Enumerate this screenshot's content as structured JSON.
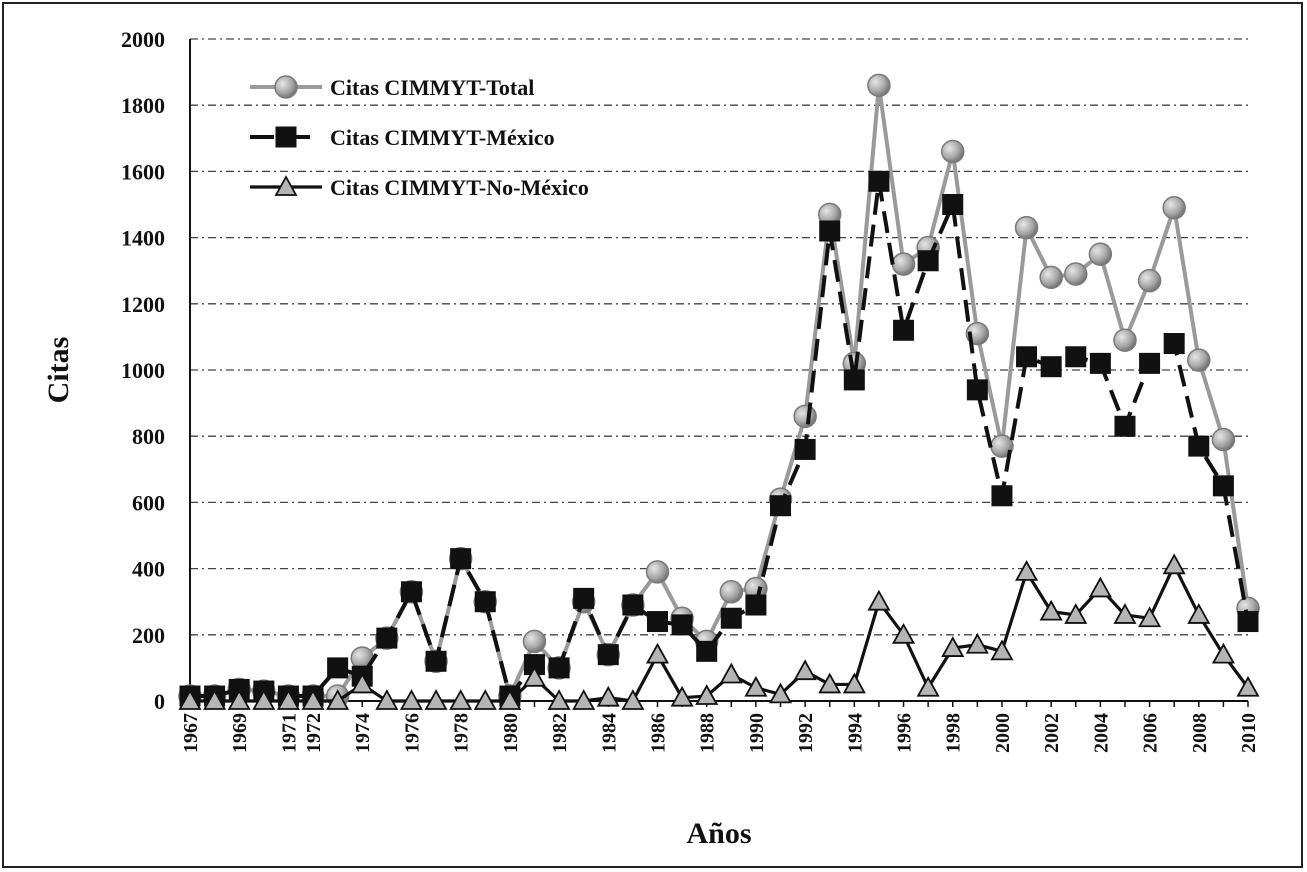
{
  "chart_data": {
    "type": "line",
    "title": "",
    "xlabel": "Años",
    "ylabel": "Citas",
    "ylim": [
      0,
      2000
    ],
    "yticks": [
      0,
      200,
      400,
      600,
      800,
      1000,
      1200,
      1400,
      1600,
      1800,
      2000
    ],
    "grid": "horizontal dash-dot",
    "legend_position": "top-left",
    "x": [
      1967,
      1968,
      1969,
      1970,
      1971,
      1972,
      1973,
      1974,
      1975,
      1976,
      1977,
      1978,
      1979,
      1980,
      1981,
      1982,
      1983,
      1984,
      1985,
      1986,
      1987,
      1988,
      1989,
      1990,
      1991,
      1992,
      1993,
      1994,
      1995,
      1996,
      1997,
      1998,
      1999,
      2000,
      2001,
      2002,
      2003,
      2004,
      2005,
      2006,
      2007,
      2008,
      2009,
      2010
    ],
    "xtick_labels": [
      "1967",
      "1969",
      "1971",
      "1972",
      "1974",
      "1976",
      "1978",
      "1980",
      "1982",
      "1984",
      "1986",
      "1988",
      "1990",
      "1992",
      "1994",
      "1996",
      "1998",
      "2000",
      "2002",
      "2004",
      "2006",
      "2008",
      "2010"
    ],
    "series": [
      {
        "name": "Citas CIMMYT-Total",
        "color": "#9a9a9a",
        "marker": "circle",
        "values": [
          15,
          15,
          35,
          30,
          15,
          15,
          15,
          130,
          190,
          330,
          120,
          430,
          300,
          15,
          180,
          100,
          300,
          140,
          290,
          390,
          250,
          180,
          330,
          340,
          610,
          860,
          1470,
          1020,
          1860,
          1320,
          1370,
          1660,
          1110,
          770,
          1430,
          1280,
          1290,
          1350,
          1090,
          1270,
          1490,
          1030,
          790,
          280
        ]
      },
      {
        "name": "Citas CIMMYT-México",
        "color": "#111111",
        "marker": "square",
        "values": [
          15,
          15,
          35,
          30,
          15,
          15,
          100,
          75,
          190,
          330,
          120,
          430,
          300,
          15,
          110,
          100,
          310,
          140,
          290,
          240,
          230,
          150,
          250,
          290,
          590,
          760,
          1420,
          970,
          1570,
          1120,
          1330,
          1500,
          940,
          620,
          1040,
          1010,
          1040,
          1020,
          830,
          1020,
          1080,
          770,
          650,
          240
        ]
      },
      {
        "name": "Citas CIMMYT-No-México",
        "color": "#111111",
        "marker": "triangle",
        "values": [
          0,
          0,
          0,
          0,
          0,
          0,
          0,
          50,
          0,
          0,
          0,
          0,
          0,
          0,
          70,
          0,
          0,
          10,
          0,
          140,
          10,
          15,
          80,
          40,
          20,
          90,
          50,
          50,
          300,
          200,
          40,
          160,
          170,
          150,
          390,
          270,
          260,
          340,
          260,
          250,
          410,
          260,
          140,
          40
        ]
      }
    ]
  }
}
